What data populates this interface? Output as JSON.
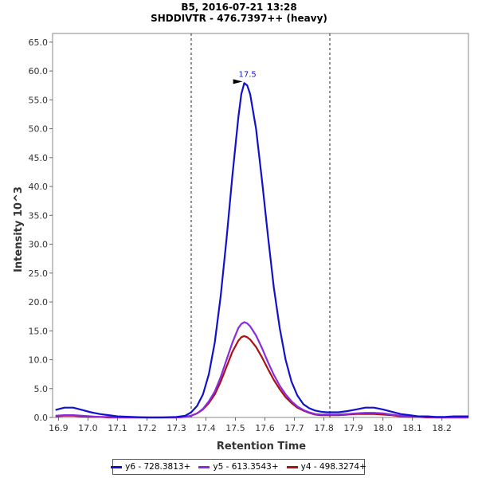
{
  "chart_data": {
    "type": "line",
    "title": "B5, 2016-07-21 13:28",
    "subtitle": "SHDDIVTR - 476.7397++ (heavy)",
    "xlabel": "Retention Time",
    "ylabel": "Intensity 10^3",
    "xlim": [
      16.88,
      18.29
    ],
    "ylim": [
      0,
      66.5
    ],
    "xticks": [
      "16.9",
      "17.0",
      "17.1",
      "17.2",
      "17.3",
      "17.4",
      "17.5",
      "17.6",
      "17.7",
      "17.8",
      "17.9",
      "18.0",
      "18.1",
      "18.2"
    ],
    "yticks": [
      "0.0",
      "5.0",
      "10.0",
      "15.0",
      "20.0",
      "25.0",
      "30.0",
      "35.0",
      "40.0",
      "45.0",
      "50.0",
      "55.0",
      "60.0",
      "65.0"
    ],
    "boundaries": [
      17.35,
      17.82
    ],
    "peak_annotation": {
      "label": "17.5",
      "x": 17.53,
      "y": 57.9
    },
    "legend_position": "bottom",
    "grid": false,
    "series": [
      {
        "name": "y6 - 728.3813+",
        "color": "#1111cc",
        "x": [
          16.89,
          16.92,
          16.95,
          16.98,
          17.01,
          17.04,
          17.07,
          17.1,
          17.15,
          17.2,
          17.25,
          17.3,
          17.33,
          17.35,
          17.37,
          17.39,
          17.41,
          17.43,
          17.45,
          17.47,
          17.49,
          17.51,
          17.52,
          17.53,
          17.54,
          17.55,
          17.57,
          17.59,
          17.61,
          17.63,
          17.65,
          17.67,
          17.69,
          17.71,
          17.73,
          17.75,
          17.77,
          17.79,
          17.81,
          17.83,
          17.85,
          17.88,
          17.91,
          17.94,
          17.97,
          18.0,
          18.03,
          18.06,
          18.09,
          18.12,
          18.15,
          18.18,
          18.21,
          18.24,
          18.27,
          18.29
        ],
        "y": [
          1.3,
          1.7,
          1.7,
          1.3,
          0.9,
          0.6,
          0.4,
          0.2,
          0.1,
          0.0,
          0.0,
          0.1,
          0.3,
          0.9,
          2.0,
          4.0,
          7.5,
          13.0,
          21.0,
          31.0,
          42.0,
          52.0,
          56.0,
          57.9,
          57.5,
          56.0,
          50.0,
          41.0,
          31.5,
          22.5,
          15.5,
          10.0,
          6.2,
          3.8,
          2.3,
          1.6,
          1.2,
          1.0,
          0.9,
          0.9,
          0.9,
          1.1,
          1.4,
          1.7,
          1.7,
          1.4,
          1.0,
          0.6,
          0.4,
          0.2,
          0.2,
          0.1,
          0.1,
          0.2,
          0.2,
          0.2
        ]
      },
      {
        "name": "y5 - 613.3543+",
        "color": "#8a2be2",
        "x": [
          16.89,
          16.92,
          16.95,
          16.98,
          17.01,
          17.04,
          17.07,
          17.1,
          17.15,
          17.2,
          17.25,
          17.3,
          17.33,
          17.35,
          17.37,
          17.39,
          17.41,
          17.43,
          17.45,
          17.47,
          17.49,
          17.51,
          17.52,
          17.53,
          17.54,
          17.55,
          17.57,
          17.59,
          17.61,
          17.63,
          17.65,
          17.67,
          17.69,
          17.71,
          17.73,
          17.75,
          17.77,
          17.79,
          17.81,
          17.83,
          17.85,
          17.88,
          17.91,
          17.94,
          17.97,
          18.0,
          18.03,
          18.06,
          18.09,
          18.12,
          18.15,
          18.18,
          18.21,
          18.24,
          18.27,
          18.29
        ],
        "y": [
          0.3,
          0.4,
          0.4,
          0.3,
          0.2,
          0.1,
          0.1,
          0.0,
          0.0,
          0.0,
          0.0,
          0.0,
          0.1,
          0.3,
          0.7,
          1.5,
          2.8,
          4.5,
          7.0,
          10.0,
          13.0,
          15.5,
          16.2,
          16.5,
          16.3,
          15.8,
          14.2,
          12.0,
          9.6,
          7.4,
          5.5,
          4.0,
          2.8,
          1.9,
          1.3,
          0.9,
          0.6,
          0.5,
          0.5,
          0.5,
          0.5,
          0.6,
          0.7,
          0.8,
          0.8,
          0.7,
          0.5,
          0.3,
          0.2,
          0.1,
          0.1,
          0.0,
          0.0,
          0.0,
          0.0,
          0.0
        ]
      },
      {
        "name": "y4 - 498.3274+",
        "color": "#aa1111",
        "x": [
          16.89,
          16.92,
          16.95,
          16.98,
          17.01,
          17.04,
          17.07,
          17.1,
          17.15,
          17.2,
          17.25,
          17.3,
          17.33,
          17.35,
          17.37,
          17.39,
          17.41,
          17.43,
          17.45,
          17.47,
          17.49,
          17.51,
          17.52,
          17.53,
          17.54,
          17.55,
          17.57,
          17.59,
          17.61,
          17.63,
          17.65,
          17.67,
          17.69,
          17.71,
          17.73,
          17.75,
          17.77,
          17.79,
          17.81,
          17.83,
          17.85,
          17.88,
          17.91,
          17.94,
          17.97,
          18.0,
          18.03,
          18.06,
          18.09,
          18.12,
          18.15,
          18.18,
          18.21,
          18.24,
          18.27,
          18.29
        ],
        "y": [
          0.2,
          0.3,
          0.3,
          0.2,
          0.1,
          0.1,
          0.0,
          0.0,
          0.0,
          0.0,
          0.0,
          0.0,
          0.1,
          0.3,
          0.7,
          1.4,
          2.5,
          4.0,
          6.2,
          8.8,
          11.4,
          13.3,
          13.9,
          14.1,
          13.9,
          13.5,
          12.2,
          10.4,
          8.4,
          6.5,
          4.9,
          3.5,
          2.5,
          1.7,
          1.2,
          0.8,
          0.5,
          0.4,
          0.4,
          0.4,
          0.4,
          0.5,
          0.6,
          0.6,
          0.6,
          0.5,
          0.4,
          0.2,
          0.1,
          0.1,
          0.0,
          0.0,
          0.0,
          0.0,
          0.0,
          0.0
        ]
      }
    ]
  }
}
